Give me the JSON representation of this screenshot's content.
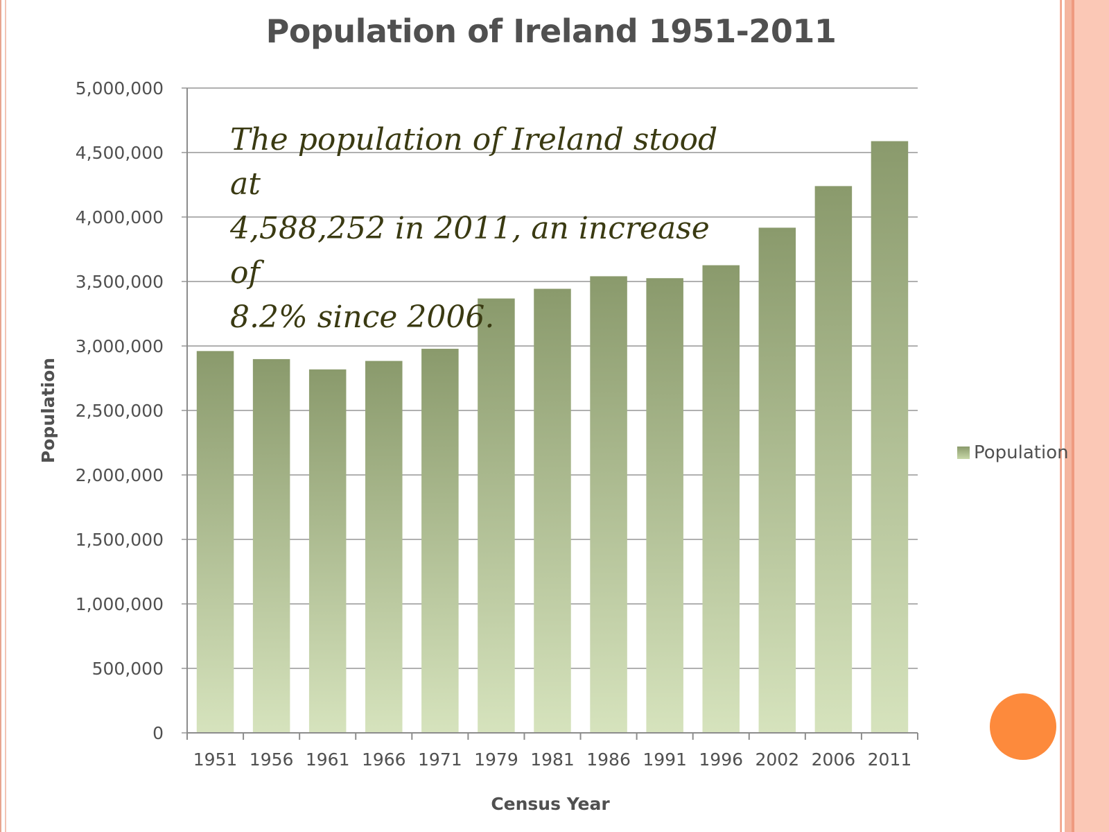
{
  "colors": {
    "bar_top": "#8a9a6c",
    "bar_bottom": "#d6e3bd",
    "grid": "#b0b0b0",
    "text": "#505050",
    "annotation": "#3a3a12",
    "accent_dot": "#fd8a3c",
    "frame": "#f4b6a0"
  },
  "chart_data": {
    "type": "bar",
    "title": "Population of Ireland 1951-2011",
    "xlabel": "Census Year",
    "ylabel": "Population",
    "categories": [
      "1951",
      "1956",
      "1961",
      "1966",
      "1971",
      "1979",
      "1981",
      "1986",
      "1991",
      "1996",
      "2002",
      "2006",
      "2011"
    ],
    "series": [
      {
        "name": "Population",
        "values": [
          2960593,
          2898264,
          2818341,
          2884002,
          2978248,
          3368217,
          3443405,
          3540643,
          3525719,
          3626087,
          3917203,
          4239848,
          4588252
        ]
      }
    ],
    "ylim": [
      0,
      5000000
    ],
    "yticks": [
      "0",
      "500,000",
      "1,000,000",
      "1,500,000",
      "2,000,000",
      "2,500,000",
      "3,000,000",
      "3,500,000",
      "4,000,000",
      "4,500,000",
      "5,000,000"
    ],
    "grid": true,
    "legend": "right",
    "annotation": "The population of Ireland stood at\n4,588,252 in 2011, an increase of\n8.2% since 2006."
  }
}
